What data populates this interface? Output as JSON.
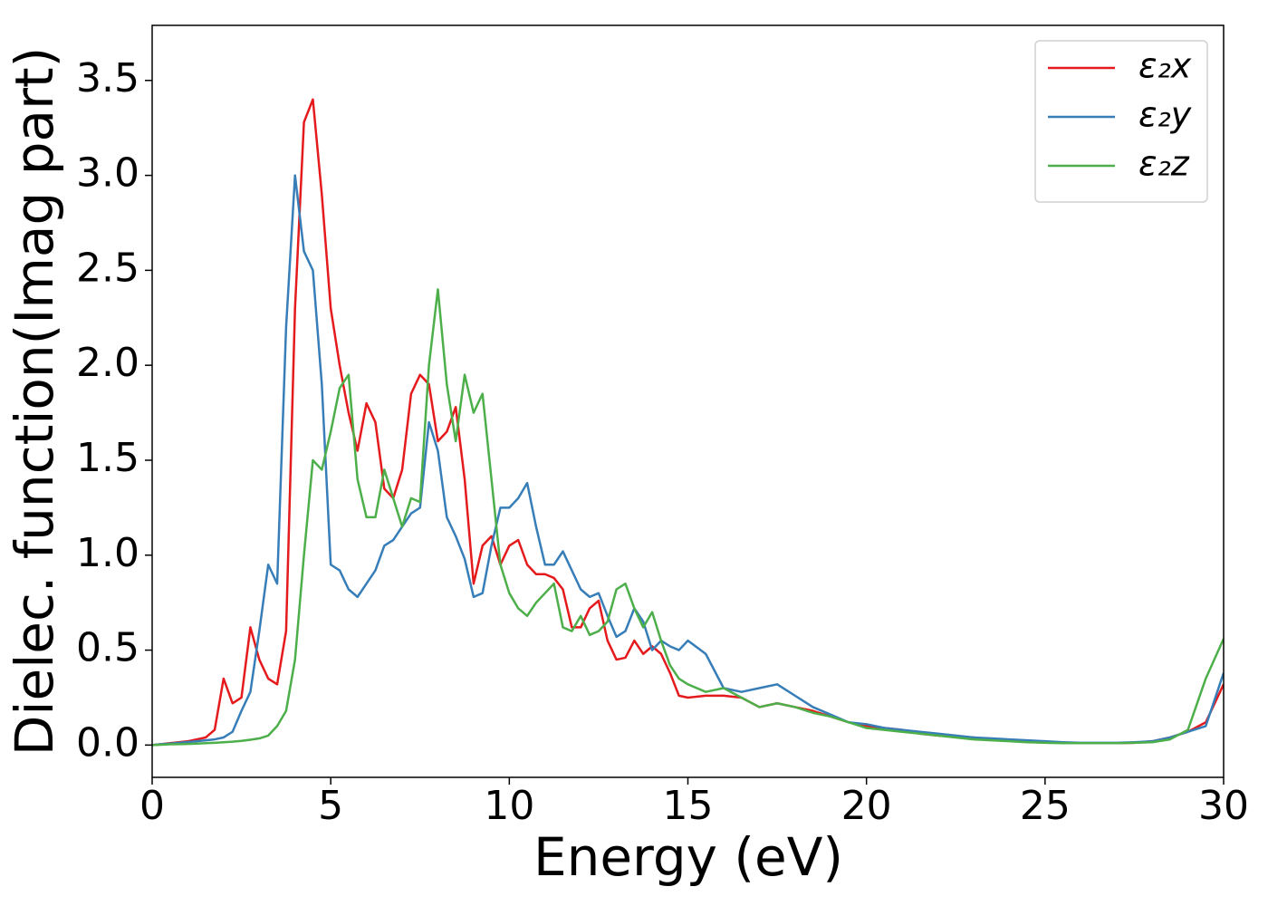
{
  "chart_data": {
    "type": "line",
    "xlabel": "Energy (eV)",
    "ylabel": "Dielec. function(Imag part)",
    "xlim": [
      0,
      30
    ],
    "ylim": [
      -0.17,
      3.79
    ],
    "xticks": [
      0,
      5,
      10,
      15,
      20,
      25,
      30
    ],
    "yticks": [
      {
        "value": 0,
        "label": "0.0"
      },
      0.5,
      {
        "value": 1,
        "label": "1.0"
      },
      1.5,
      {
        "value": 2,
        "label": "2.0"
      },
      2.5,
      {
        "value": 3,
        "label": "3.0"
      },
      3.5
    ],
    "legend": "upper right",
    "x": [
      0,
      0.25,
      0.5,
      0.75,
      1,
      1.25,
      1.5,
      1.75,
      2,
      2.25,
      2.5,
      2.75,
      3,
      3.25,
      3.5,
      3.75,
      4,
      4.25,
      4.5,
      4.75,
      5,
      5.25,
      5.5,
      5.75,
      6,
      6.25,
      6.5,
      6.75,
      7,
      7.25,
      7.5,
      7.75,
      8,
      8.25,
      8.5,
      8.75,
      9,
      9.25,
      9.5,
      9.75,
      10,
      10.25,
      10.5,
      10.75,
      11,
      11.25,
      11.5,
      11.75,
      12,
      12.25,
      12.5,
      12.75,
      13,
      13.25,
      13.5,
      13.75,
      14,
      14.25,
      14.5,
      14.75,
      15,
      15.5,
      16,
      16.5,
      17,
      17.5,
      18,
      18.5,
      19,
      19.5,
      20,
      20.5,
      21,
      21.5,
      22,
      22.5,
      23,
      23.5,
      24,
      24.5,
      25,
      25.5,
      26,
      26.5,
      27,
      27.5,
      28,
      28.5,
      29,
      29.5,
      30
    ],
    "series": [
      {
        "name": "ε₂x",
        "color": "#e41a1c",
        "values": [
          0,
          0.005,
          0.01,
          0.015,
          0.02,
          0.03,
          0.04,
          0.08,
          0.35,
          0.22,
          0.25,
          0.62,
          0.45,
          0.35,
          0.32,
          0.6,
          2.3,
          3.28,
          3.4,
          2.9,
          2.3,
          2.0,
          1.75,
          1.55,
          1.8,
          1.7,
          1.35,
          1.3,
          1.45,
          1.85,
          1.95,
          1.9,
          1.6,
          1.65,
          1.78,
          1.4,
          0.85,
          1.05,
          1.1,
          0.95,
          1.05,
          1.08,
          0.95,
          0.9,
          0.9,
          0.88,
          0.82,
          0.62,
          0.62,
          0.72,
          0.76,
          0.55,
          0.45,
          0.46,
          0.55,
          0.48,
          0.52,
          0.48,
          0.38,
          0.26,
          0.25,
          0.26,
          0.26,
          0.25,
          0.2,
          0.22,
          0.2,
          0.18,
          0.15,
          0.12,
          0.1,
          0.09,
          0.08,
          0.06,
          0.05,
          0.045,
          0.04,
          0.03,
          0.025,
          0.02,
          0.015,
          0.012,
          0.01,
          0.01,
          0.01,
          0.012,
          0.02,
          0.04,
          0.07,
          0.12,
          0.32
        ]
      },
      {
        "name": "ε₂y",
        "color": "#377eb8",
        "values": [
          0,
          0.005,
          0.008,
          0.012,
          0.016,
          0.02,
          0.025,
          0.03,
          0.04,
          0.07,
          0.18,
          0.28,
          0.6,
          0.95,
          0.85,
          2.2,
          3.0,
          2.6,
          2.5,
          1.9,
          0.95,
          0.92,
          0.82,
          0.78,
          0.85,
          0.92,
          1.05,
          1.08,
          1.15,
          1.22,
          1.25,
          1.7,
          1.55,
          1.2,
          1.1,
          0.98,
          0.78,
          0.8,
          1.05,
          1.25,
          1.25,
          1.3,
          1.38,
          1.15,
          0.95,
          0.95,
          1.02,
          0.92,
          0.82,
          0.78,
          0.8,
          0.68,
          0.57,
          0.6,
          0.72,
          0.65,
          0.5,
          0.55,
          0.52,
          0.5,
          0.55,
          0.48,
          0.3,
          0.28,
          0.3,
          0.32,
          0.26,
          0.2,
          0.16,
          0.12,
          0.11,
          0.09,
          0.08,
          0.07,
          0.06,
          0.05,
          0.04,
          0.035,
          0.03,
          0.025,
          0.02,
          0.015,
          0.012,
          0.012,
          0.012,
          0.015,
          0.02,
          0.04,
          0.07,
          0.1,
          0.38
        ]
      },
      {
        "name": "ε₂z",
        "color": "#4daf4a",
        "values": [
          0,
          0.002,
          0.004,
          0.005,
          0.006,
          0.008,
          0.01,
          0.012,
          0.015,
          0.018,
          0.022,
          0.028,
          0.035,
          0.05,
          0.1,
          0.18,
          0.45,
          1.0,
          1.5,
          1.45,
          1.65,
          1.88,
          1.95,
          1.4,
          1.2,
          1.2,
          1.45,
          1.3,
          1.15,
          1.3,
          1.28,
          2.0,
          2.4,
          1.9,
          1.6,
          1.95,
          1.75,
          1.85,
          1.4,
          0.95,
          0.8,
          0.72,
          0.68,
          0.75,
          0.8,
          0.85,
          0.62,
          0.6,
          0.68,
          0.58,
          0.6,
          0.65,
          0.82,
          0.85,
          0.72,
          0.62,
          0.7,
          0.55,
          0.42,
          0.35,
          0.32,
          0.28,
          0.3,
          0.25,
          0.2,
          0.22,
          0.2,
          0.17,
          0.15,
          0.12,
          0.09,
          0.08,
          0.07,
          0.06,
          0.05,
          0.04,
          0.03,
          0.025,
          0.02,
          0.015,
          0.012,
          0.01,
          0.01,
          0.01,
          0.01,
          0.012,
          0.015,
          0.03,
          0.08,
          0.35,
          0.56
        ]
      }
    ]
  }
}
